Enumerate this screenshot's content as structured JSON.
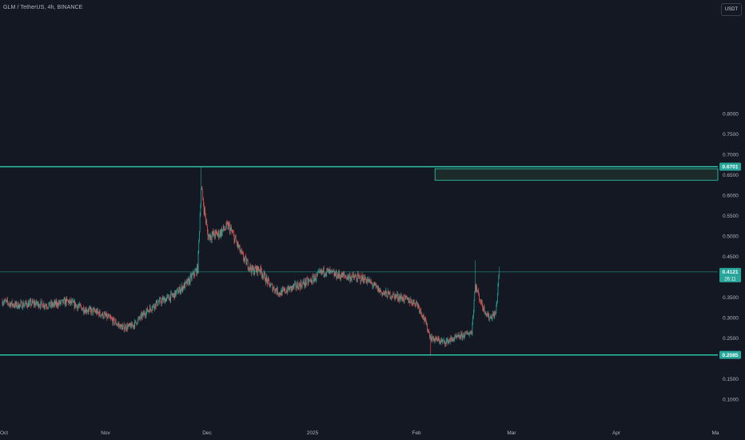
{
  "header": {
    "title": "GLM / TetherUS, 4h, BINANCE",
    "currency_label": "USDT"
  },
  "price_axis": {
    "ticks": [
      "0.8000",
      "0.7500",
      "0.7000",
      "0.6500",
      "0.6000",
      "0.5500",
      "0.5000",
      "0.4500",
      "0.3500",
      "0.3000",
      "0.2500",
      "0.1500",
      "0.1000"
    ]
  },
  "time_axis": {
    "ticks": [
      "Oct",
      "Nov",
      "Dec",
      "2025",
      "Feb",
      "Mar",
      "Apr",
      "Ma"
    ]
  },
  "labels": {
    "resistance_price": "0.6701",
    "current_price": "0.4121",
    "countdown": "26:11",
    "support_price": "0.2085"
  },
  "colors": {
    "background": "#141823",
    "up": "#26a69a",
    "down": "#ef5350",
    "level_line": "#2bd1b0",
    "label_bg": "#26a69a"
  },
  "chart_data": {
    "type": "candlestick",
    "title": "GLM / TetherUS, 4h, BINANCE",
    "y_axis": {
      "scale": "linear",
      "range": [
        0.08,
        0.82
      ]
    },
    "x_axis": {
      "categories": [
        "Oct",
        "Nov",
        "Dec",
        "2025",
        "Feb",
        "Mar",
        "Apr",
        "Ma"
      ]
    },
    "grid": false,
    "horizontal_levels": [
      {
        "price": 0.6701,
        "label": "0.6701"
      },
      {
        "price": 0.4121,
        "label": "0.4121"
      },
      {
        "price": 0.2085,
        "label": "0.2085"
      }
    ],
    "zone": {
      "price_low": 0.637,
      "price_high": 0.665,
      "time_start": "2025-02-01",
      "time_end": "2025-05-01"
    },
    "price_path": [
      [
        "2024-10-01",
        0.34
      ],
      [
        "2024-10-05",
        0.33
      ],
      [
        "2024-10-10",
        0.335
      ],
      [
        "2024-10-15",
        0.33
      ],
      [
        "2024-10-20",
        0.34
      ],
      [
        "2024-10-25",
        0.32
      ],
      [
        "2024-10-28",
        0.315
      ],
      [
        "2024-11-01",
        0.3
      ],
      [
        "2024-11-05",
        0.275
      ],
      [
        "2024-11-08",
        0.28
      ],
      [
        "2024-11-12",
        0.315
      ],
      [
        "2024-11-15",
        0.335
      ],
      [
        "2024-11-20",
        0.355
      ],
      [
        "2024-11-24",
        0.385
      ],
      [
        "2024-11-27",
        0.42
      ],
      [
        "2024-11-28",
        0.62
      ],
      [
        "2024-11-30",
        0.5
      ],
      [
        "2024-12-03",
        0.505
      ],
      [
        "2024-12-06",
        0.525
      ],
      [
        "2024-12-08",
        0.49
      ],
      [
        "2024-12-10",
        0.45
      ],
      [
        "2024-12-13",
        0.415
      ],
      [
        "2024-12-15",
        0.42
      ],
      [
        "2024-12-18",
        0.38
      ],
      [
        "2024-12-21",
        0.36
      ],
      [
        "2024-12-25",
        0.375
      ],
      [
        "2024-12-30",
        0.39
      ],
      [
        "2025-01-03",
        0.415
      ],
      [
        "2025-01-06",
        0.405
      ],
      [
        "2025-01-10",
        0.4
      ],
      [
        "2025-01-15",
        0.395
      ],
      [
        "2025-01-20",
        0.36
      ],
      [
        "2025-01-25",
        0.35
      ],
      [
        "2025-01-30",
        0.335
      ],
      [
        "2025-02-01",
        0.3
      ],
      [
        "2025-02-03",
        0.25
      ],
      [
        "2025-02-07",
        0.24
      ],
      [
        "2025-02-12",
        0.255
      ],
      [
        "2025-02-15",
        0.265
      ],
      [
        "2025-02-16",
        0.38
      ],
      [
        "2025-02-18",
        0.33
      ],
      [
        "2025-02-20",
        0.3
      ],
      [
        "2025-02-22",
        0.31
      ],
      [
        "2025-02-23",
        0.4121
      ]
    ],
    "notable_wicks": [
      {
        "time": "2024-11-28",
        "high": 0.6701
      },
      {
        "time": "2025-02-03",
        "low": 0.2085
      },
      {
        "time": "2025-02-16",
        "high": 0.44
      },
      {
        "time": "2025-02-23",
        "high": 0.425
      }
    ]
  }
}
